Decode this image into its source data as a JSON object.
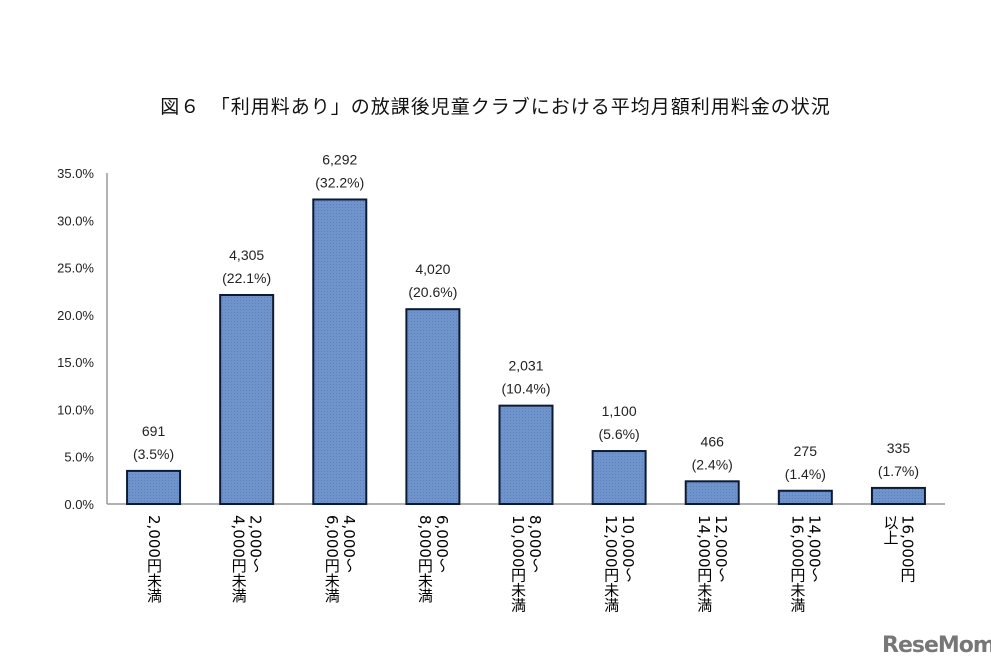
{
  "chart_data": {
    "type": "bar",
    "title": "図６　「利用料あり」の放課後児童クラブにおける平均月額利用料金の状況",
    "categories": [
      [
        "2,000円未満"
      ],
      [
        "2,000～",
        "4,000円未満"
      ],
      [
        "4,000～",
        "6,000円未満"
      ],
      [
        "6,000～",
        "8,000円未満"
      ],
      [
        "8,000～",
        "10,000円未満"
      ],
      [
        "10,000～",
        "12,000円未満"
      ],
      [
        "12,000～",
        "14,000円未満"
      ],
      [
        "14,000～",
        "16,000円未満"
      ],
      [
        "16,000円",
        "以上"
      ]
    ],
    "values": [
      3.5,
      22.1,
      32.2,
      20.6,
      10.4,
      5.6,
      2.4,
      1.4,
      1.7
    ],
    "counts": [
      "691",
      "4,305",
      "6,292",
      "4,020",
      "2,031",
      "1,100",
      "466",
      "275",
      "335"
    ],
    "data_labels_pct": [
      "(3.5%)",
      "(22.1%)",
      "(32.2%)",
      "(20.6%)",
      "(10.4%)",
      "(5.6%)",
      "(2.4%)",
      "(1.4%)",
      "(1.7%)"
    ],
    "yticks": [
      "0.0%",
      "5.0%",
      "10.0%",
      "15.0%",
      "20.0%",
      "25.0%",
      "30.0%",
      "35.0%"
    ],
    "ylim": [
      0,
      35
    ],
    "xlabel": "",
    "ylabel": "",
    "grid": false,
    "bar_color": "#6f93cb",
    "bar_edge": "#0d1a33"
  },
  "watermark": "ReseMom"
}
